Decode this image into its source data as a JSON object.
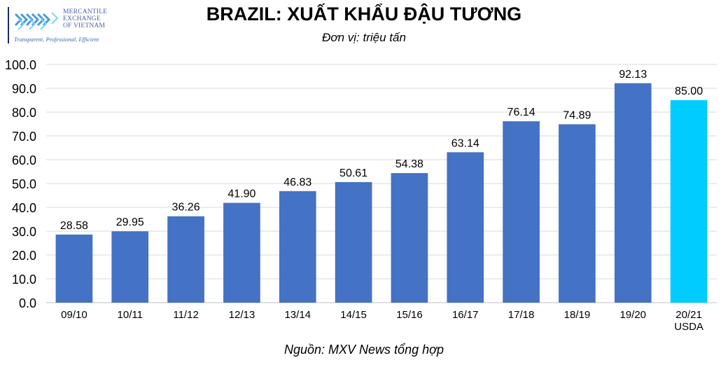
{
  "logo": {
    "name_lines": [
      "MERCANTILE",
      "EXCHANGE",
      "OF VIETNAM"
    ],
    "slogan": "Transparent, Professional, Efficient"
  },
  "source_note": "Nguồn: MXV News tổng hợp",
  "colors": {
    "bar": "#4472c4",
    "bar_highlight": "#00ccff",
    "grid": "#d9d9d9",
    "axis": "#bfbfbf",
    "text": "#000000"
  },
  "chart_data": {
    "type": "bar",
    "title": "BRAZIL: XUẤT KHẨU ĐẬU TƯƠNG",
    "subtitle": "Đơn vị: triệu tấn",
    "xlabel": "",
    "ylabel": "",
    "categories": [
      "09/10",
      "10/11",
      "11/12",
      "12/13",
      "13/14",
      "14/15",
      "15/16",
      "16/17",
      "17/18",
      "18/19",
      "19/20",
      "20/21\nUSDA"
    ],
    "values": [
      28.58,
      29.95,
      36.26,
      41.9,
      46.83,
      50.61,
      54.38,
      63.14,
      76.14,
      74.89,
      92.13,
      85.0
    ],
    "data_labels": [
      "28.58",
      "29.95",
      "36.26",
      "41.90",
      "46.83",
      "50.61",
      "54.38",
      "63.14",
      "76.14",
      "74.89",
      "92.13",
      "85.00"
    ],
    "highlight_index": 11,
    "ylim": [
      0,
      100
    ],
    "yticks": [
      0,
      10,
      20,
      30,
      40,
      50,
      60,
      70,
      80,
      90,
      100
    ],
    "ytick_labels": [
      "0.0",
      "10.0",
      "20.0",
      "30.0",
      "40.0",
      "50.0",
      "60.0",
      "70.0",
      "80.0",
      "90.0",
      "100.0"
    ],
    "grid": true,
    "legend": "none"
  }
}
